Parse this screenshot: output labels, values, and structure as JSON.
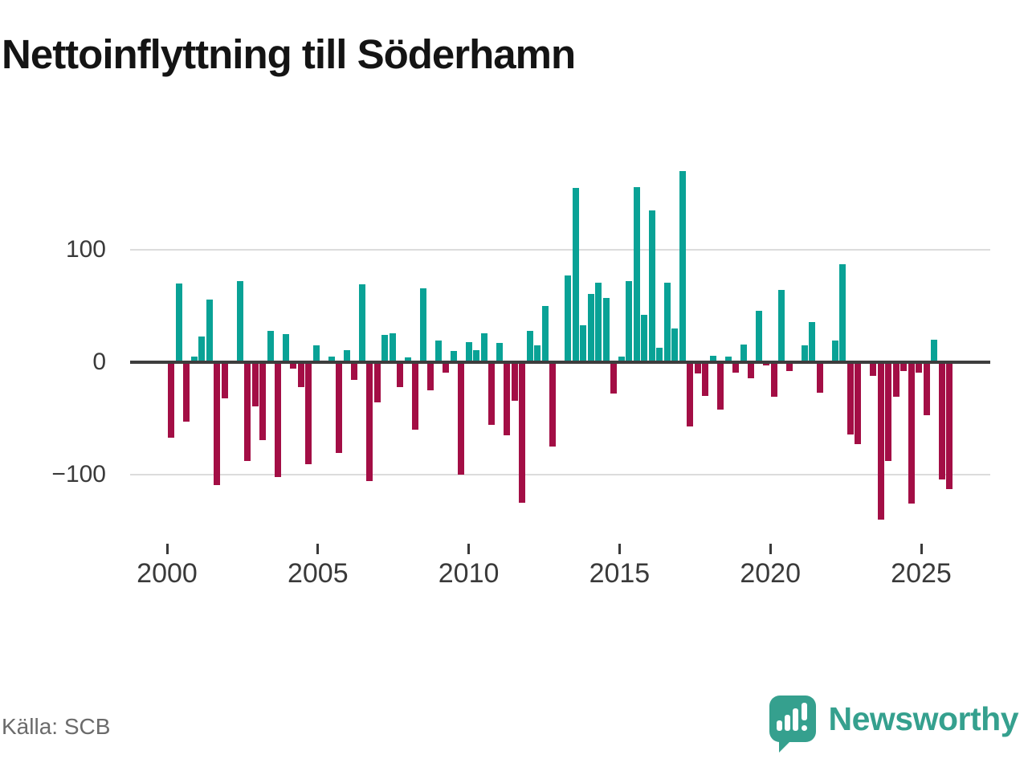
{
  "title": "Nettoinflyttning till Söderhamn",
  "source": "Källa: SCB",
  "branding": {
    "name": "Newsworthy",
    "color": "#35a08e"
  },
  "colors": {
    "positive_bar": "#09a296",
    "negative_bar": "#a30e45",
    "zero_axis": "#3d3d3d",
    "gridline": "#dcdcdc",
    "axis_text": "#3a3a3a",
    "title_text": "#141414",
    "source_text": "#6b6b6b"
  },
  "chart_data": {
    "type": "bar",
    "title": "Nettoinflyttning till Söderhamn",
    "description": "Quarterly net migration to Söderhamn, positive teal bars and negative dark-red bars",
    "start_quarter": "2000-Q1",
    "frequency": "quarterly",
    "values": [
      -67,
      70,
      -53,
      5,
      23,
      56,
      -109,
      -32,
      0,
      72,
      -88,
      -39,
      -69,
      28,
      -102,
      25,
      -6,
      -22,
      -91,
      15,
      0,
      5,
      -81,
      11,
      -16,
      69,
      -106,
      -36,
      24,
      26,
      -22,
      4,
      -60,
      66,
      -25,
      19,
      -9,
      10,
      -100,
      18,
      11,
      26,
      -56,
      17,
      -65,
      -34,
      -125,
      28,
      15,
      50,
      -75,
      0,
      77,
      155,
      33,
      61,
      71,
      57,
      -28,
      5,
      72,
      156,
      42,
      135,
      13,
      71,
      30,
      170,
      -57,
      -10,
      -30,
      6,
      -42,
      5,
      -9,
      16,
      -14,
      46,
      -3,
      -31,
      64,
      -8,
      0,
      15,
      36,
      -27,
      0,
      19,
      87,
      -64,
      -73,
      0,
      -12,
      -140,
      -88,
      -31,
      -8,
      -126,
      -9,
      -47,
      20,
      -104,
      -113
    ],
    "y_ticks": [
      {
        "value": 100,
        "label": "100"
      },
      {
        "value": 0,
        "label": "0"
      },
      {
        "value": -100,
        "label": "−100"
      }
    ],
    "x_ticks": [
      {
        "year": 2000,
        "label": "2000"
      },
      {
        "year": 2005,
        "label": "2005"
      },
      {
        "year": 2010,
        "label": "2010"
      },
      {
        "year": 2015,
        "label": "2015"
      },
      {
        "year": 2020,
        "label": "2020"
      },
      {
        "year": 2025,
        "label": "2025"
      }
    ],
    "ylim": [
      -145,
      180
    ],
    "grid": "horizontal",
    "legend": "none"
  }
}
